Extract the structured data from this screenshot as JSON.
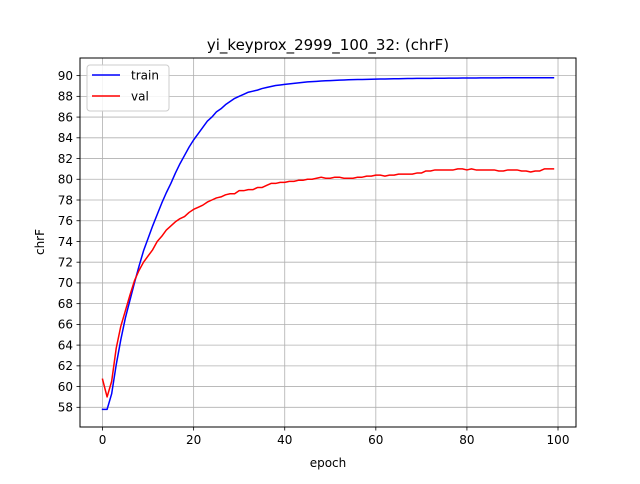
{
  "chart_data": {
    "type": "line",
    "title": "yi_keyprox_2999_100_32: (chrF)",
    "xlabel": "epoch",
    "ylabel": "chrF",
    "xlim": [
      -4.95,
      103.95
    ],
    "ylim": [
      56.1,
      91.7
    ],
    "xticks": [
      0,
      20,
      40,
      60,
      80,
      100
    ],
    "yticks": [
      58,
      60,
      62,
      64,
      66,
      68,
      70,
      72,
      74,
      76,
      78,
      80,
      82,
      84,
      86,
      88,
      90
    ],
    "grid": true,
    "legend_position": "upper-left",
    "series": [
      {
        "name": "train",
        "color": "#0000ff",
        "x": [
          0,
          1,
          2,
          3,
          4,
          5,
          6,
          7,
          8,
          9,
          10,
          11,
          12,
          13,
          14,
          15,
          16,
          17,
          18,
          19,
          20,
          21,
          22,
          23,
          24,
          25,
          26,
          27,
          28,
          29,
          30,
          31,
          32,
          33,
          34,
          35,
          36,
          37,
          38,
          39,
          40,
          41,
          42,
          43,
          44,
          45,
          46,
          47,
          48,
          49,
          50,
          51,
          52,
          53,
          54,
          55,
          56,
          57,
          58,
          59,
          60,
          61,
          62,
          63,
          64,
          65,
          66,
          67,
          68,
          69,
          70,
          71,
          72,
          73,
          74,
          75,
          76,
          77,
          78,
          79,
          80,
          81,
          82,
          83,
          84,
          85,
          86,
          87,
          88,
          89,
          90,
          91,
          92,
          93,
          94,
          95,
          96,
          97,
          98,
          99
        ],
        "y": [
          57.8,
          57.8,
          59.3,
          62.1,
          64.5,
          66.6,
          68.3,
          70.0,
          71.6,
          73.1,
          74.3,
          75.5,
          76.6,
          77.7,
          78.7,
          79.6,
          80.6,
          81.5,
          82.3,
          83.1,
          83.8,
          84.4,
          85.0,
          85.6,
          86.0,
          86.5,
          86.8,
          87.2,
          87.5,
          87.8,
          88.0,
          88.2,
          88.4,
          88.5,
          88.6,
          88.75,
          88.85,
          88.95,
          89.05,
          89.1,
          89.15,
          89.2,
          89.25,
          89.3,
          89.35,
          89.4,
          89.42,
          89.45,
          89.48,
          89.5,
          89.52,
          89.54,
          89.56,
          89.58,
          89.6,
          89.61,
          89.62,
          89.63,
          89.64,
          89.65,
          89.66,
          89.67,
          89.68,
          89.69,
          89.7,
          89.7,
          89.71,
          89.72,
          89.72,
          89.73,
          89.73,
          89.74,
          89.74,
          89.75,
          89.75,
          89.75,
          89.76,
          89.76,
          89.76,
          89.77,
          89.77,
          89.77,
          89.77,
          89.78,
          89.78,
          89.78,
          89.78,
          89.78,
          89.79,
          89.79,
          89.79,
          89.79,
          89.79,
          89.79,
          89.8,
          89.8,
          89.8,
          89.8,
          89.8,
          89.8
        ]
      },
      {
        "name": "val",
        "color": "#ff0000",
        "x": [
          0,
          1,
          2,
          3,
          4,
          5,
          6,
          7,
          8,
          9,
          10,
          11,
          12,
          13,
          14,
          15,
          16,
          17,
          18,
          19,
          20,
          21,
          22,
          23,
          24,
          25,
          26,
          27,
          28,
          29,
          30,
          31,
          32,
          33,
          34,
          35,
          36,
          37,
          38,
          39,
          40,
          41,
          42,
          43,
          44,
          45,
          46,
          47,
          48,
          49,
          50,
          51,
          52,
          53,
          54,
          55,
          56,
          57,
          58,
          59,
          60,
          61,
          62,
          63,
          64,
          65,
          66,
          67,
          68,
          69,
          70,
          71,
          72,
          73,
          74,
          75,
          76,
          77,
          78,
          79,
          80,
          81,
          82,
          83,
          84,
          85,
          86,
          87,
          88,
          89,
          90,
          91,
          92,
          93,
          94,
          95,
          96,
          97,
          98,
          99
        ],
        "y": [
          60.7,
          59.0,
          60.5,
          63.7,
          65.8,
          67.3,
          68.8,
          70.2,
          71.2,
          72.0,
          72.6,
          73.2,
          74.0,
          74.5,
          75.1,
          75.5,
          75.9,
          76.2,
          76.4,
          76.8,
          77.1,
          77.3,
          77.5,
          77.8,
          78.0,
          78.2,
          78.3,
          78.5,
          78.6,
          78.6,
          78.9,
          78.9,
          79.0,
          79.0,
          79.2,
          79.2,
          79.4,
          79.6,
          79.6,
          79.7,
          79.7,
          79.8,
          79.8,
          79.9,
          79.9,
          80.0,
          80.0,
          80.1,
          80.2,
          80.1,
          80.1,
          80.2,
          80.2,
          80.1,
          80.1,
          80.1,
          80.2,
          80.2,
          80.3,
          80.3,
          80.4,
          80.4,
          80.3,
          80.4,
          80.4,
          80.5,
          80.5,
          80.5,
          80.5,
          80.6,
          80.6,
          80.8,
          80.8,
          80.9,
          80.9,
          80.9,
          80.9,
          80.9,
          81.0,
          81.0,
          80.9,
          81.0,
          80.9,
          80.9,
          80.9,
          80.9,
          80.9,
          80.8,
          80.8,
          80.9,
          80.9,
          80.9,
          80.8,
          80.8,
          80.7,
          80.8,
          80.8,
          81.0,
          81.0,
          81.0
        ]
      }
    ]
  }
}
